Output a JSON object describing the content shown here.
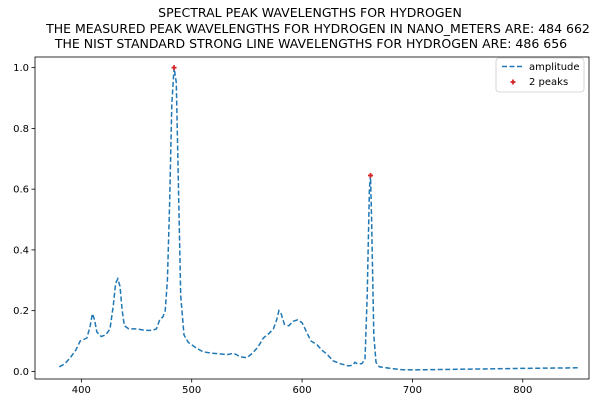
{
  "chart_data": {
    "type": "line",
    "title_lines": [
      "SPECTRAL PEAK WAVELENGTHS FOR HYDROGEN",
      "THE MEASURED PEAK WAVELENGTHS FOR HYDROGEN IN NANO_METERS ARE: 484 662",
      "THE NIST STANDARD STRONG LINE WAVELENGTHS FOR HYDROGEN ARE: 486 656"
    ],
    "xlabel": "",
    "ylabel": "",
    "xlim": [
      358,
      860
    ],
    "ylim": [
      -0.025,
      1.035
    ],
    "x_ticks": [
      400,
      500,
      600,
      700,
      800
    ],
    "y_ticks": [
      0.0,
      0.2,
      0.4,
      0.6,
      0.8,
      1.0
    ],
    "x_tick_labels": [
      "400",
      "500",
      "600",
      "700",
      "800"
    ],
    "y_tick_labels": [
      "0.0",
      "0.2",
      "0.4",
      "0.6",
      "0.8",
      "1.0"
    ],
    "legend": {
      "placement": "upper-right",
      "entries": [
        "amplitude",
        "2 peaks"
      ]
    },
    "series": [
      {
        "name": "amplitude",
        "color": "#1f77b4",
        "style": "dashed",
        "points": [
          [
            380,
            0.015
          ],
          [
            385,
            0.025
          ],
          [
            390,
            0.045
          ],
          [
            395,
            0.07
          ],
          [
            399,
            0.1
          ],
          [
            402,
            0.105
          ],
          [
            405,
            0.11
          ],
          [
            408,
            0.15
          ],
          [
            410,
            0.19
          ],
          [
            412,
            0.17
          ],
          [
            414,
            0.13
          ],
          [
            418,
            0.115
          ],
          [
            422,
            0.12
          ],
          [
            426,
            0.14
          ],
          [
            429,
            0.22
          ],
          [
            431,
            0.29
          ],
          [
            433,
            0.305
          ],
          [
            435,
            0.28
          ],
          [
            437,
            0.2
          ],
          [
            439,
            0.15
          ],
          [
            443,
            0.14
          ],
          [
            450,
            0.14
          ],
          [
            458,
            0.135
          ],
          [
            464,
            0.135
          ],
          [
            468,
            0.14
          ],
          [
            471,
            0.17
          ],
          [
            474,
            0.18
          ],
          [
            476,
            0.2
          ],
          [
            478,
            0.3
          ],
          [
            480,
            0.55
          ],
          [
            482,
            0.88
          ],
          [
            484,
            1.0
          ],
          [
            486,
            0.95
          ],
          [
            488,
            0.6
          ],
          [
            490,
            0.25
          ],
          [
            493,
            0.12
          ],
          [
            497,
            0.095
          ],
          [
            503,
            0.08
          ],
          [
            510,
            0.065
          ],
          [
            518,
            0.06
          ],
          [
            525,
            0.058
          ],
          [
            532,
            0.055
          ],
          [
            538,
            0.06
          ],
          [
            544,
            0.048
          ],
          [
            550,
            0.045
          ],
          [
            555,
            0.06
          ],
          [
            560,
            0.08
          ],
          [
            565,
            0.11
          ],
          [
            570,
            0.125
          ],
          [
            574,
            0.14
          ],
          [
            577,
            0.17
          ],
          [
            579,
            0.2
          ],
          [
            581,
            0.19
          ],
          [
            584,
            0.155
          ],
          [
            588,
            0.15
          ],
          [
            592,
            0.165
          ],
          [
            596,
            0.17
          ],
          [
            600,
            0.16
          ],
          [
            604,
            0.13
          ],
          [
            608,
            0.1
          ],
          [
            613,
            0.09
          ],
          [
            618,
            0.07
          ],
          [
            623,
            0.055
          ],
          [
            628,
            0.035
          ],
          [
            635,
            0.025
          ],
          [
            642,
            0.018
          ],
          [
            646,
            0.02
          ],
          [
            648,
            0.03
          ],
          [
            650,
            0.025
          ],
          [
            654,
            0.025
          ],
          [
            657,
            0.04
          ],
          [
            659,
            0.25
          ],
          [
            661,
            0.6
          ],
          [
            662,
            0.645
          ],
          [
            663,
            0.5
          ],
          [
            665,
            0.12
          ],
          [
            667,
            0.03
          ],
          [
            670,
            0.015
          ],
          [
            680,
            0.01
          ],
          [
            690,
            0.006
          ],
          [
            700,
            0.005
          ],
          [
            720,
            0.006
          ],
          [
            760,
            0.008
          ],
          [
            800,
            0.01
          ],
          [
            850,
            0.012
          ]
        ]
      }
    ],
    "peaks": {
      "name": "2 peaks",
      "color": "#d62728",
      "marker": "plus",
      "points": [
        [
          484,
          1.0
        ],
        [
          662,
          0.645
        ]
      ]
    }
  }
}
